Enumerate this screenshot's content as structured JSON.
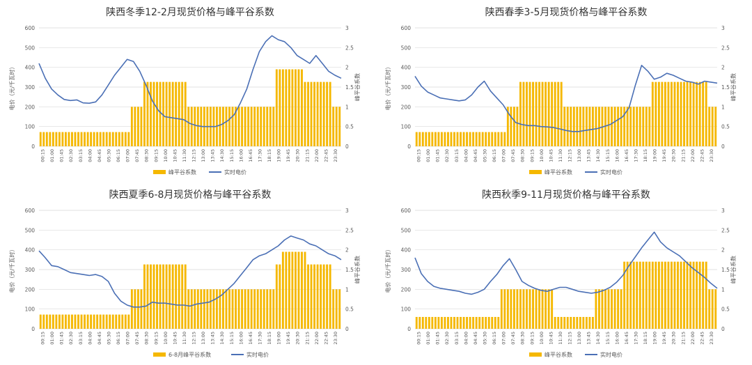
{
  "chart_data": [
    {
      "type": "bar",
      "title": "陕西冬季12-2月现货价格与峰平谷系数",
      "ylabel": "电价（元/千瓦时）",
      "y2label": "峰平谷系数",
      "ylim": [
        0,
        600
      ],
      "y2lim": [
        0,
        3
      ],
      "yticks": [
        "0",
        "100",
        "200",
        "300",
        "400",
        "500",
        "600"
      ],
      "y2ticks": [
        "0",
        "0.5",
        "1",
        "1.5",
        "2",
        "2.5",
        "3"
      ],
      "legend": [
        "峰平谷系数",
        "实时电价"
      ],
      "colors": {
        "bar": "#f5b800",
        "line": "#4a6fb5"
      },
      "x": [
        "00:15",
        "01:00",
        "01:45",
        "02:30",
        "03:15",
        "04:00",
        "04:45",
        "05:30",
        "06:15",
        "07:00",
        "07:45",
        "08:30",
        "09:15",
        "10:00",
        "10:45",
        "11:30",
        "12:15",
        "13:00",
        "13:45",
        "14:30",
        "15:15",
        "16:00",
        "16:45",
        "17:30",
        "18:15",
        "19:00",
        "19:45",
        "20:30",
        "21:15",
        "22:00",
        "22:45",
        "23:30"
      ],
      "coef_segments": [
        {
          "start": 0,
          "end": 7.25,
          "value": 0.36
        },
        {
          "start": 7.25,
          "end": 8.25,
          "value": 1.0
        },
        {
          "start": 8.25,
          "end": 11.75,
          "value": 1.63
        },
        {
          "start": 11.75,
          "end": 18.75,
          "value": 1.0
        },
        {
          "start": 18.75,
          "end": 21.0,
          "value": 1.95
        },
        {
          "start": 21.0,
          "end": 23.25,
          "value": 1.63
        },
        {
          "start": 23.25,
          "end": 24.0,
          "value": 1.0
        }
      ],
      "price_hours": [
        0,
        0.5,
        1,
        1.5,
        2,
        2.5,
        3,
        3.5,
        4,
        4.5,
        5,
        5.5,
        6,
        6.5,
        7,
        7.5,
        8,
        8.5,
        9,
        9.5,
        10,
        10.5,
        11,
        11.5,
        12,
        12.5,
        13,
        13.5,
        14,
        14.5,
        15,
        15.5,
        16,
        16.5,
        17,
        17.5,
        18,
        18.5,
        19,
        19.5,
        20,
        20.5,
        21,
        21.5,
        22,
        22.5,
        23,
        23.5,
        24
      ],
      "price_values": [
        420,
        345,
        290,
        260,
        237,
        232,
        235,
        220,
        218,
        225,
        260,
        310,
        360,
        400,
        440,
        430,
        380,
        310,
        230,
        180,
        150,
        145,
        140,
        135,
        115,
        105,
        100,
        100,
        100,
        110,
        130,
        160,
        220,
        290,
        390,
        480,
        530,
        560,
        540,
        530,
        500,
        460,
        440,
        420,
        460,
        420,
        380,
        360,
        345
      ]
    },
    {
      "type": "bar",
      "title": "陕西春季3-5月现货价格与峰平谷系数",
      "ylabel": "电价（元/千瓦时）",
      "y2label": "峰平谷系数",
      "ylim": [
        0,
        600
      ],
      "y2lim": [
        0,
        3
      ],
      "yticks": [
        "0",
        "100",
        "200",
        "300",
        "400",
        "500",
        "600"
      ],
      "y2ticks": [
        "0",
        "0.5",
        "1",
        "1.5",
        "2",
        "2.5",
        "3"
      ],
      "legend": [
        "峰平谷系数",
        "实时电价"
      ],
      "colors": {
        "bar": "#f5b800",
        "line": "#4a6fb5"
      },
      "x": [
        "00:15",
        "01:00",
        "01:45",
        "02:30",
        "03:15",
        "04:00",
        "04:45",
        "05:30",
        "06:15",
        "07:00",
        "07:45",
        "08:30",
        "09:15",
        "10:00",
        "10:45",
        "11:30",
        "12:15",
        "13:00",
        "13:45",
        "14:30",
        "15:15",
        "16:00",
        "16:45",
        "17:30",
        "18:15",
        "19:00",
        "19:45",
        "20:30",
        "21:15",
        "22:00",
        "22:45",
        "23:30"
      ],
      "coef_segments": [
        {
          "start": 0,
          "end": 7.25,
          "value": 0.36
        },
        {
          "start": 7.25,
          "end": 8.25,
          "value": 1.0
        },
        {
          "start": 8.25,
          "end": 11.75,
          "value": 1.63
        },
        {
          "start": 11.75,
          "end": 18.75,
          "value": 1.0
        },
        {
          "start": 18.75,
          "end": 23.25,
          "value": 1.63
        },
        {
          "start": 23.25,
          "end": 24.0,
          "value": 1.0
        }
      ],
      "price_hours": [
        0,
        0.5,
        1,
        1.5,
        2,
        2.5,
        3,
        3.5,
        4,
        4.5,
        5,
        5.5,
        6,
        6.5,
        7,
        7.5,
        8,
        8.5,
        9,
        9.5,
        10,
        10.5,
        11,
        11.5,
        12,
        12.5,
        13,
        13.5,
        14,
        14.5,
        15,
        15.5,
        16,
        16.5,
        17,
        17.5,
        18,
        18.5,
        19,
        19.5,
        20,
        20.5,
        21,
        21.5,
        22,
        22.5,
        23,
        23.5,
        24
      ],
      "price_values": [
        355,
        305,
        275,
        260,
        245,
        240,
        235,
        230,
        235,
        260,
        300,
        330,
        280,
        245,
        210,
        160,
        120,
        110,
        105,
        105,
        100,
        98,
        95,
        88,
        80,
        75,
        75,
        80,
        85,
        90,
        100,
        110,
        130,
        150,
        195,
        310,
        410,
        380,
        340,
        350,
        370,
        360,
        345,
        330,
        325,
        315,
        330,
        325,
        320
      ]
    },
    {
      "type": "bar",
      "title": "陕西夏季6-8月现货价格与峰平谷系数",
      "ylabel": "电价（元/千瓦时）",
      "y2label": "峰平谷系数",
      "ylim": [
        0,
        600
      ],
      "y2lim": [
        0,
        3
      ],
      "yticks": [
        "0",
        "100",
        "200",
        "300",
        "400",
        "500",
        "600"
      ],
      "y2ticks": [
        "0",
        "0.5",
        "1",
        "1.5",
        "2",
        "2.5",
        "3"
      ],
      "legend": [
        "6-8月峰平谷系数",
        "实时电价"
      ],
      "colors": {
        "bar": "#f5b800",
        "line": "#4a6fb5"
      },
      "x": [
        "00:15",
        "01:00",
        "01:45",
        "02:30",
        "03:15",
        "04:00",
        "04:45",
        "05:30",
        "06:15",
        "07:00",
        "07:45",
        "08:30",
        "09:15",
        "10:00",
        "10:45",
        "11:30",
        "12:15",
        "13:00",
        "13:45",
        "14:30",
        "15:15",
        "16:00",
        "16:45",
        "17:30",
        "18:15",
        "19:00",
        "19:45",
        "20:30",
        "21:15",
        "22:00",
        "22:45",
        "23:30"
      ],
      "coef_segments": [
        {
          "start": 0,
          "end": 7.25,
          "value": 0.36
        },
        {
          "start": 7.25,
          "end": 8.25,
          "value": 1.0
        },
        {
          "start": 8.25,
          "end": 11.75,
          "value": 1.63
        },
        {
          "start": 11.75,
          "end": 18.75,
          "value": 1.0
        },
        {
          "start": 18.75,
          "end": 19.25,
          "value": 1.63
        },
        {
          "start": 19.25,
          "end": 21.25,
          "value": 1.95
        },
        {
          "start": 21.25,
          "end": 23.25,
          "value": 1.63
        },
        {
          "start": 23.25,
          "end": 24.0,
          "value": 1.0
        }
      ],
      "price_hours": [
        0,
        0.5,
        1,
        1.5,
        2,
        2.5,
        3,
        3.5,
        4,
        4.5,
        5,
        5.5,
        6,
        6.5,
        7,
        7.5,
        8,
        8.5,
        9,
        9.5,
        10,
        10.5,
        11,
        11.5,
        12,
        12.5,
        13,
        13.5,
        14,
        14.5,
        15,
        15.5,
        16,
        16.5,
        17,
        17.5,
        18,
        18.5,
        19,
        19.5,
        20,
        20.5,
        21,
        21.5,
        22,
        22.5,
        23,
        23.5,
        24
      ],
      "price_values": [
        395,
        360,
        320,
        315,
        300,
        285,
        280,
        275,
        270,
        275,
        265,
        240,
        180,
        140,
        120,
        110,
        110,
        115,
        135,
        130,
        130,
        125,
        120,
        120,
        115,
        125,
        130,
        135,
        150,
        170,
        200,
        230,
        270,
        310,
        350,
        370,
        380,
        400,
        420,
        450,
        470,
        460,
        450,
        430,
        420,
        400,
        380,
        370,
        350
      ]
    },
    {
      "type": "bar",
      "title": "陕西秋季9-11月现货价格与峰平谷系数",
      "ylabel": "电价（元/千瓦时）",
      "y2label": "峰平谷系数",
      "ylim": [
        0,
        600
      ],
      "y2lim": [
        0,
        3
      ],
      "yticks": [
        "0",
        "100",
        "200",
        "300",
        "400",
        "500",
        "600"
      ],
      "y2ticks": [
        "0",
        "0.5",
        "1",
        "1.5",
        "2",
        "2.5",
        "3"
      ],
      "legend": [
        "峰平谷系数",
        "实时电价"
      ],
      "colors": {
        "bar": "#f5b800",
        "line": "#4a6fb5"
      },
      "x": [
        "00:15",
        "01:00",
        "01:45",
        "02:30",
        "03:15",
        "04:00",
        "04:45",
        "05:30",
        "06:15",
        "07:00",
        "07:45",
        "08:30",
        "09:15",
        "10:00",
        "10:45",
        "11:30",
        "12:15",
        "13:00",
        "13:45",
        "14:30",
        "15:15",
        "16:00",
        "16:45",
        "17:30",
        "18:15",
        "19:00",
        "19:45",
        "20:30",
        "21:15",
        "22:00",
        "22:45",
        "23:30"
      ],
      "coef_segments": [
        {
          "start": 0,
          "end": 6.75,
          "value": 0.3
        },
        {
          "start": 6.75,
          "end": 11.0,
          "value": 1.0
        },
        {
          "start": 11.0,
          "end": 14.25,
          "value": 0.3
        },
        {
          "start": 14.25,
          "end": 16.5,
          "value": 1.0
        },
        {
          "start": 16.5,
          "end": 23.25,
          "value": 1.7
        },
        {
          "start": 23.25,
          "end": 24.0,
          "value": 1.0
        }
      ],
      "price_hours": [
        0,
        0.5,
        1,
        1.5,
        2,
        2.5,
        3,
        3.5,
        4,
        4.5,
        5,
        5.5,
        6,
        6.5,
        7,
        7.5,
        8,
        8.5,
        9,
        9.5,
        10,
        10.5,
        11,
        11.5,
        12,
        12.5,
        13,
        13.5,
        14,
        14.5,
        15,
        15.5,
        16,
        16.5,
        17,
        17.5,
        18,
        18.5,
        19,
        19.5,
        20,
        20.5,
        21,
        21.5,
        22,
        22.5,
        23,
        23.5,
        24
      ],
      "price_values": [
        360,
        280,
        240,
        215,
        205,
        200,
        195,
        190,
        180,
        175,
        185,
        200,
        240,
        275,
        320,
        355,
        300,
        240,
        220,
        205,
        195,
        190,
        200,
        210,
        210,
        200,
        190,
        185,
        180,
        185,
        195,
        210,
        235,
        270,
        320,
        365,
        410,
        450,
        490,
        440,
        410,
        390,
        370,
        340,
        310,
        285,
        260,
        230,
        205
      ]
    }
  ]
}
